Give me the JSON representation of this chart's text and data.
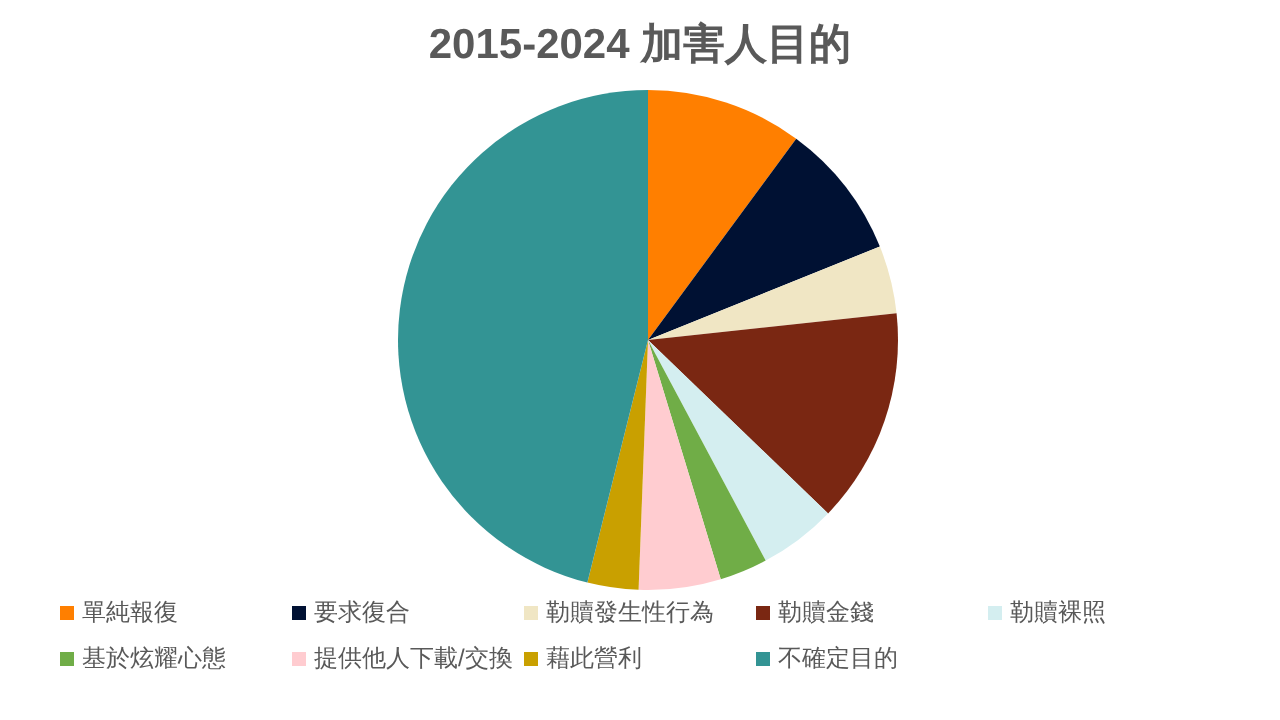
{
  "chart_data": {
    "type": "pie",
    "title": "2015-2024 加害人目的",
    "categories": [
      "單純報復",
      "要求復合",
      "勒贖發生性行為",
      "勒贖金錢",
      "勒贖裸照",
      "基於炫耀心態",
      "提供他人下載/交換",
      "藉此營利",
      "不確定目的"
    ],
    "values": [
      10.1,
      8.8,
      4.4,
      13.9,
      5.0,
      3.1,
      5.3,
      3.3,
      46.1
    ],
    "colors": [
      "#ff7f00",
      "#001133",
      "#f0e6c4",
      "#7a2712",
      "#d4eef0",
      "#70ad47",
      "#ffccd0",
      "#c9a000",
      "#339494"
    ],
    "legend": "bottom"
  }
}
